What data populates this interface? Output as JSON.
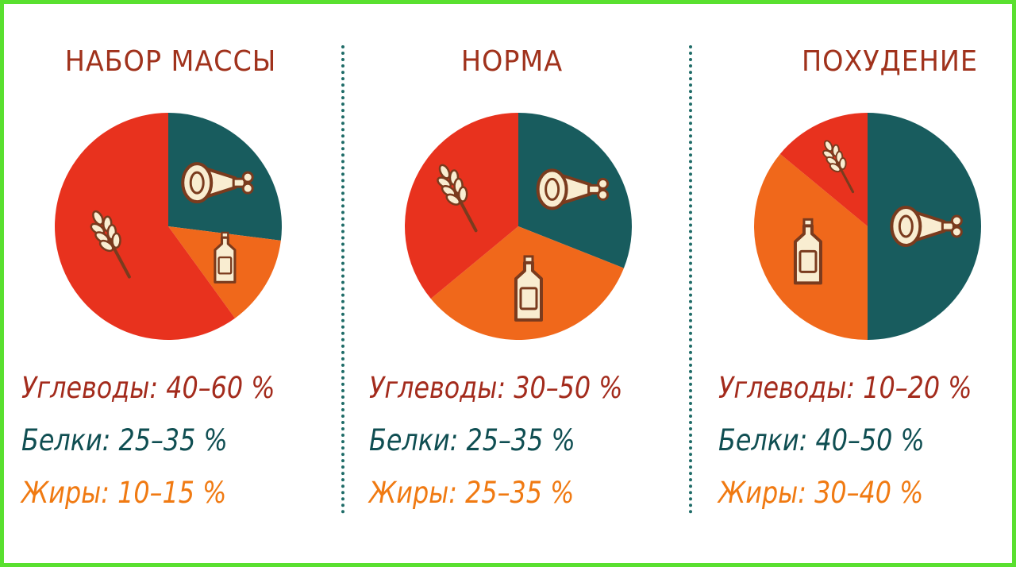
{
  "colors": {
    "carbs": "#e8321e",
    "protein": "#185c5e",
    "fat": "#f0681b",
    "icon": "#f9edd1",
    "icon_stroke": "#7a3b1e"
  },
  "chart_data": [
    {
      "type": "pie",
      "title": "НАБОР МАССЫ",
      "slices": [
        {
          "key": "protein",
          "value": 27,
          "icon": "meat-leg-icon"
        },
        {
          "key": "fat",
          "value": 13,
          "icon": "oil-bottle-icon"
        },
        {
          "key": "carbs",
          "value": 60,
          "icon": "wheat-icon"
        }
      ],
      "legend": [
        {
          "key": "carbs",
          "label": "Углеводы:",
          "range": "40–60 %"
        },
        {
          "key": "protein",
          "label": "Белки:",
          "range": "25–35 %"
        },
        {
          "key": "fat",
          "label": "Жиры:",
          "range": "10–15 %"
        }
      ]
    },
    {
      "type": "pie",
      "title": "НОРМА",
      "slices": [
        {
          "key": "protein",
          "value": 31,
          "icon": "meat-leg-icon"
        },
        {
          "key": "fat",
          "value": 33,
          "icon": "oil-bottle-icon"
        },
        {
          "key": "carbs",
          "value": 36,
          "icon": "wheat-icon"
        }
      ],
      "legend": [
        {
          "key": "carbs",
          "label": "Углеводы:",
          "range": "30–50 %"
        },
        {
          "key": "protein",
          "label": "Белки:",
          "range": "25–35 %"
        },
        {
          "key": "fat",
          "label": "Жиры:",
          "range": "25–35 %"
        }
      ]
    },
    {
      "type": "pie",
      "title": "ПОХУДЕНИЕ",
      "slices": [
        {
          "key": "protein",
          "value": 50,
          "icon": "meat-leg-icon"
        },
        {
          "key": "fat",
          "value": 36,
          "icon": "oil-bottle-icon"
        },
        {
          "key": "carbs",
          "value": 14,
          "icon": "wheat-icon"
        }
      ],
      "legend": [
        {
          "key": "carbs",
          "label": "Углеводы:",
          "range": "10–20 %"
        },
        {
          "key": "protein",
          "label": "Белки:",
          "range": "40–50 %"
        },
        {
          "key": "fat",
          "label": "Жиры:",
          "range": "30–40 %"
        }
      ]
    }
  ]
}
